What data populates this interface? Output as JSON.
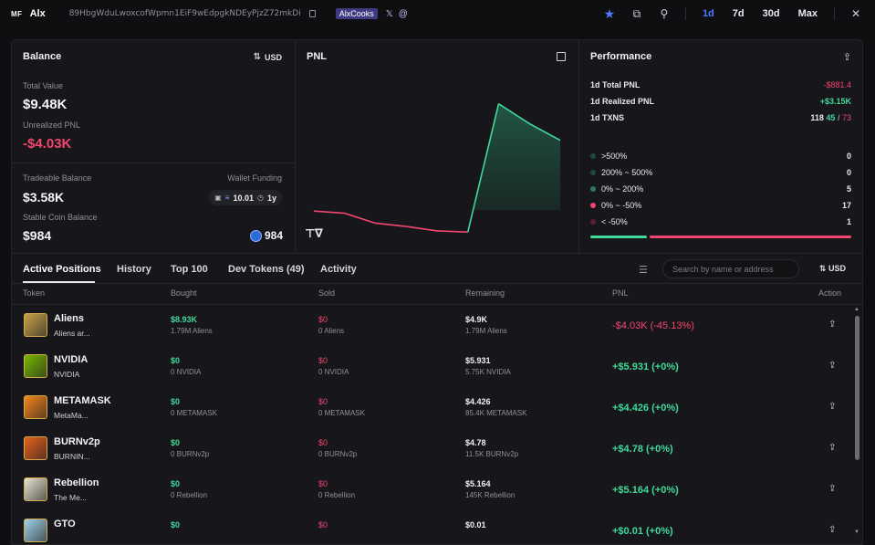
{
  "header": {
    "logo": "MF",
    "name": "Alx",
    "address": "89HbgWduLwoxcofWpmn1EiF9wEdpgkNDEyPjzZ72mkDi",
    "handle": "AlxCooks",
    "timeframes": [
      "1d",
      "7d",
      "30d",
      "Max"
    ],
    "active_timeframe": "1d"
  },
  "balance": {
    "title": "Balance",
    "currency": "USD",
    "total_value_label": "Total Value",
    "total_value": "$9.48K",
    "unrealized_pnl_label": "Unrealized PNL",
    "unrealized_pnl": "-$4.03K",
    "tradeable_label": "Tradeable Balance",
    "tradeable": "$3.58K",
    "wallet_funding_label": "Wallet Funding",
    "funding_amount": "10.01",
    "funding_age": "1y",
    "stable_label": "Stable Coin Balance",
    "stable": "$984",
    "stable_coin_amount": "984"
  },
  "pnl_card": {
    "title": "PNL"
  },
  "chart_data": {
    "type": "area",
    "title": "PNL",
    "x": [
      0,
      1,
      2,
      3,
      4,
      5,
      6,
      7,
      8
    ],
    "values": [
      -0.05,
      -0.15,
      -0.6,
      -0.75,
      -0.95,
      -1.0,
      4.8,
      3.9,
      3.15
    ],
    "xlabel": "",
    "ylabel": "",
    "ylim": [
      -1.2,
      5.2
    ],
    "grid": false,
    "colors": {
      "positive": "#3fd99a",
      "negative": "#f2466f"
    }
  },
  "performance": {
    "title": "Performance",
    "total_pnl_label": "1d Total PNL",
    "total_pnl": "-$881.4",
    "realized_pnl_label": "1d Realized PNL",
    "realized_pnl": "+$3.15K",
    "txns_label": "1d TXNS",
    "txns_total": "118",
    "txns_buy": "45",
    "txns_sell": "73",
    "ranges": [
      {
        "label": ">500%",
        "count": "0",
        "color": "#1f4a3a"
      },
      {
        "label": "200% ~ 500%",
        "count": "0",
        "color": "#1f4a3a"
      },
      {
        "label": "0% ~ 200%",
        "count": "5",
        "color": "#2d7a58"
      },
      {
        "label": "0% ~ -50%",
        "count": "17",
        "color": "#f2466f"
      },
      {
        "label": "< -50%",
        "count": "1",
        "color": "#5a2230"
      }
    ]
  },
  "tabs": {
    "items": [
      "Active Positions",
      "History",
      "Top 100",
      "Dev Tokens (49)",
      "Activity"
    ],
    "search_placeholder": "Search by name or address",
    "currency": "USD"
  },
  "table": {
    "headers": [
      "Token",
      "Bought",
      "Sold",
      "Remaining",
      "PNL",
      "Action"
    ],
    "rows": [
      {
        "name": "Aliens",
        "sub": "Aliens ar...",
        "bought": "$8.93K",
        "bought_sub": "1.79M Aliens",
        "sold": "$0",
        "sold_sub": "0 Aliens",
        "remaining": "$4.9K",
        "remaining_sub": "1.79M Aliens",
        "pnl": "-$4.03K (-45.13%)",
        "pnl_positive": false,
        "img_color": "#c9a24a"
      },
      {
        "name": "NVIDIA",
        "sub": "NVIDIA",
        "bought": "$0",
        "bought_sub": "0 NVIDIA",
        "sold": "$0",
        "sold_sub": "0 NVIDIA",
        "remaining": "$5.931",
        "remaining_sub": "5.75K NVIDIA",
        "pnl": "+$5.931 (+0%)",
        "pnl_positive": true,
        "img_color": "#76b900"
      },
      {
        "name": "METAMASK",
        "sub": "MetaMa...",
        "bought": "$0",
        "bought_sub": "0 METAMASK",
        "sold": "$0",
        "sold_sub": "0 METAMASK",
        "remaining": "$4.426",
        "remaining_sub": "85.4K METAMASK",
        "pnl": "+$4.426 (+0%)",
        "pnl_positive": true,
        "img_color": "#f6851b"
      },
      {
        "name": "BURNv2p",
        "sub": "BURNIN...",
        "bought": "$0",
        "bought_sub": "0 BURNv2p",
        "sold": "$0",
        "sold_sub": "0 BURNv2p",
        "remaining": "$4.78",
        "remaining_sub": "11.5K BURNv2p",
        "pnl": "+$4.78 (+0%)",
        "pnl_positive": true,
        "img_color": "#e8601c"
      },
      {
        "name": "Rebellion",
        "sub": "The Me...",
        "bought": "$0",
        "bought_sub": "0 Rebellion",
        "sold": "$0",
        "sold_sub": "0 Rebellion",
        "remaining": "$5.164",
        "remaining_sub": "145K Rebellion",
        "pnl": "+$5.164 (+0%)",
        "pnl_positive": true,
        "img_color": "#e9e4d2"
      },
      {
        "name": "GTO",
        "sub": "",
        "bought": "$0",
        "bought_sub": "",
        "sold": "$0",
        "sold_sub": "",
        "remaining": "$0.01",
        "remaining_sub": "",
        "pnl": "+$0.01 (+0%)",
        "pnl_positive": true,
        "img_color": "#9fd2e8"
      }
    ]
  }
}
